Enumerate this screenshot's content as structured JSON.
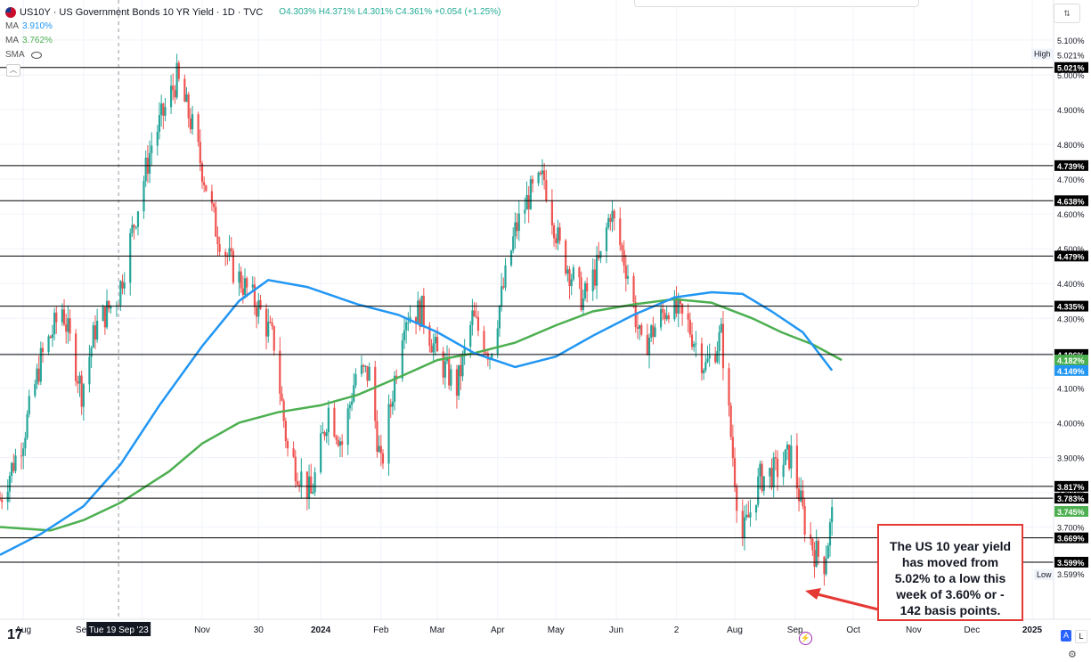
{
  "legend": {
    "title": "US10Y · US Government Bonds 10 YR Yield · 1D · TVC",
    "ohlc": "O4.303% H4.371% L4.301% C4.361% +0.054 (+1.25%)",
    "ma1_label": "MA",
    "ma1_value": "3.910%",
    "ma2_label": "MA",
    "ma2_value": "3.762%",
    "sma_label": "SMA"
  },
  "annotation": {
    "text": "The US 10 year yield has moved from 5.02% to a low this week of 3.60% or - 142 basis points.",
    "color": "#e53935"
  },
  "crosshair_label": "Tue 19 Sep '23",
  "labels": {
    "high_tag": "High",
    "high_value": "5.021%",
    "low_tag": "Low",
    "low_value": "3.599%",
    "auto_btn": "A",
    "log_btn": "L",
    "tv_logo": "17"
  },
  "colors": {
    "up": "#26a69a",
    "down": "#ef5350",
    "ma_green": "#4caf50",
    "ma_blue": "#2196f3",
    "accent": "#2962ff",
    "level": "#000000"
  },
  "chart_data": {
    "type": "line",
    "title": "US Government Bonds 10 YR Yield",
    "x_ticks": [
      "Aug",
      "Sep",
      "Oct",
      "Nov",
      "30",
      "2024",
      "Feb",
      "Mar",
      "Apr",
      "May",
      "Jun",
      "2",
      "Aug",
      "Sep",
      "Oct",
      "Nov",
      "Dec",
      "2025"
    ],
    "x_tick_dates": [
      "2023-08-01",
      "2023-09-01",
      "2023-10-01",
      "2023-11-01",
      "2023-11-30",
      "2024-01-01",
      "2024-02-01",
      "2024-03-01",
      "2024-04-01",
      "2024-05-01",
      "2024-06-01",
      "2024-07-02",
      "2024-08-01",
      "2024-09-01",
      "2024-10-01",
      "2024-11-01",
      "2024-12-01",
      "2025-01-01"
    ],
    "x_range": [
      "2023-07-20",
      "2025-01-12"
    ],
    "y_range": [
      3.435,
      5.215
    ],
    "y_ticks": [
      3.6,
      3.7,
      3.8,
      3.9,
      4.0,
      4.1,
      4.2,
      4.3,
      4.4,
      4.5,
      4.6,
      4.7,
      4.8,
      4.9,
      5.0,
      5.1
    ],
    "y_unit": "%",
    "horizontal_levels": [
      {
        "label": "5.021%",
        "value": 5.021
      },
      {
        "label": "4.739%",
        "value": 4.739
      },
      {
        "label": "4.638%",
        "value": 4.638
      },
      {
        "label": "4.479%",
        "value": 4.479
      },
      {
        "label": "4.335%",
        "value": 4.335
      },
      {
        "label": "4.196%",
        "value": 4.196
      },
      {
        "label": "3.817%",
        "value": 3.817
      },
      {
        "label": "3.783%",
        "value": 3.783
      },
      {
        "label": "3.669%",
        "value": 3.669
      },
      {
        "label": "3.599%",
        "value": 3.599
      }
    ],
    "last_price": {
      "label": "3.745%",
      "value": 3.745
    },
    "series": [
      {
        "name": "MA",
        "last_label": "4.182%",
        "points": [
          [
            "2023-07-20",
            3.7
          ],
          [
            "2023-08-15",
            3.69
          ],
          [
            "2023-09-01",
            3.72
          ],
          [
            "2023-09-20",
            3.77
          ],
          [
            "2023-10-15",
            3.86
          ],
          [
            "2023-11-01",
            3.94
          ],
          [
            "2023-11-20",
            4.0
          ],
          [
            "2023-12-10",
            4.03
          ],
          [
            "2024-01-01",
            4.05
          ],
          [
            "2024-01-20",
            4.08
          ],
          [
            "2024-02-10",
            4.13
          ],
          [
            "2024-03-01",
            4.18
          ],
          [
            "2024-03-20",
            4.2
          ],
          [
            "2024-04-10",
            4.23
          ],
          [
            "2024-05-01",
            4.28
          ],
          [
            "2024-05-20",
            4.32
          ],
          [
            "2024-06-10",
            4.34
          ],
          [
            "2024-07-01",
            4.355
          ],
          [
            "2024-07-20",
            4.345
          ],
          [
            "2024-08-10",
            4.3
          ],
          [
            "2024-08-25",
            4.26
          ],
          [
            "2024-09-10",
            4.225
          ],
          [
            "2024-09-25",
            4.18
          ]
        ]
      },
      {
        "name": "MA",
        "last_label": "4.149%",
        "points": [
          [
            "2023-07-20",
            3.62
          ],
          [
            "2023-08-10",
            3.68
          ],
          [
            "2023-09-01",
            3.76
          ],
          [
            "2023-09-20",
            3.88
          ],
          [
            "2023-10-10",
            4.05
          ],
          [
            "2023-11-01",
            4.22
          ],
          [
            "2023-11-20",
            4.35
          ],
          [
            "2023-12-05",
            4.41
          ],
          [
            "2023-12-25",
            4.39
          ],
          [
            "2024-01-20",
            4.34
          ],
          [
            "2024-02-10",
            4.31
          ],
          [
            "2024-03-01",
            4.26
          ],
          [
            "2024-03-20",
            4.2
          ],
          [
            "2024-04-10",
            4.16
          ],
          [
            "2024-05-01",
            4.19
          ],
          [
            "2024-05-20",
            4.25
          ],
          [
            "2024-06-10",
            4.31
          ],
          [
            "2024-07-01",
            4.36
          ],
          [
            "2024-07-20",
            4.375
          ],
          [
            "2024-08-05",
            4.37
          ],
          [
            "2024-08-20",
            4.32
          ],
          [
            "2024-09-05",
            4.26
          ],
          [
            "2024-09-20",
            4.15
          ]
        ]
      },
      {
        "name": "US10Y",
        "type": "candles",
        "points": [
          [
            "2023-07-20",
            3.78
          ],
          [
            "2023-08-01",
            3.96
          ],
          [
            "2023-08-10",
            4.18
          ],
          [
            "2023-08-21",
            4.33
          ],
          [
            "2023-08-31",
            4.09
          ],
          [
            "2023-09-07",
            4.27
          ],
          [
            "2023-09-19",
            4.37
          ],
          [
            "2023-09-28",
            4.6
          ],
          [
            "2023-10-06",
            4.8
          ],
          [
            "2023-10-19",
            4.99
          ],
          [
            "2023-10-27",
            4.85
          ],
          [
            "2023-11-08",
            4.56
          ],
          [
            "2023-11-17",
            4.44
          ],
          [
            "2023-11-30",
            4.33
          ],
          [
            "2023-12-08",
            4.23
          ],
          [
            "2023-12-15",
            3.92
          ],
          [
            "2023-12-27",
            3.79
          ],
          [
            "2024-01-05",
            4.04
          ],
          [
            "2024-01-12",
            3.94
          ],
          [
            "2024-01-19",
            4.14
          ],
          [
            "2024-01-26",
            4.14
          ],
          [
            "2024-02-01",
            3.87
          ],
          [
            "2024-02-13",
            4.31
          ],
          [
            "2024-02-22",
            4.32
          ],
          [
            "2024-03-01",
            4.19
          ],
          [
            "2024-03-11",
            4.1
          ],
          [
            "2024-03-19",
            4.3
          ],
          [
            "2024-03-28",
            4.2
          ],
          [
            "2024-04-10",
            4.55
          ],
          [
            "2024-04-17",
            4.65
          ],
          [
            "2024-04-25",
            4.7
          ],
          [
            "2024-05-03",
            4.5
          ],
          [
            "2024-05-15",
            4.35
          ],
          [
            "2024-05-24",
            4.47
          ],
          [
            "2024-05-29",
            4.61
          ],
          [
            "2024-06-07",
            4.43
          ],
          [
            "2024-06-14",
            4.21
          ],
          [
            "2024-06-28",
            4.34
          ],
          [
            "2024-07-08",
            4.28
          ],
          [
            "2024-07-17",
            4.16
          ],
          [
            "2024-07-25",
            4.25
          ],
          [
            "2024-08-02",
            3.79
          ],
          [
            "2024-08-05",
            3.67
          ],
          [
            "2024-08-14",
            3.84
          ],
          [
            "2024-08-22",
            3.86
          ],
          [
            "2024-08-30",
            3.91
          ],
          [
            "2024-09-06",
            3.71
          ],
          [
            "2024-09-11",
            3.63
          ],
          [
            "2024-09-16",
            3.6
          ],
          [
            "2024-09-20",
            3.73
          ]
        ]
      }
    ],
    "grid": true
  }
}
